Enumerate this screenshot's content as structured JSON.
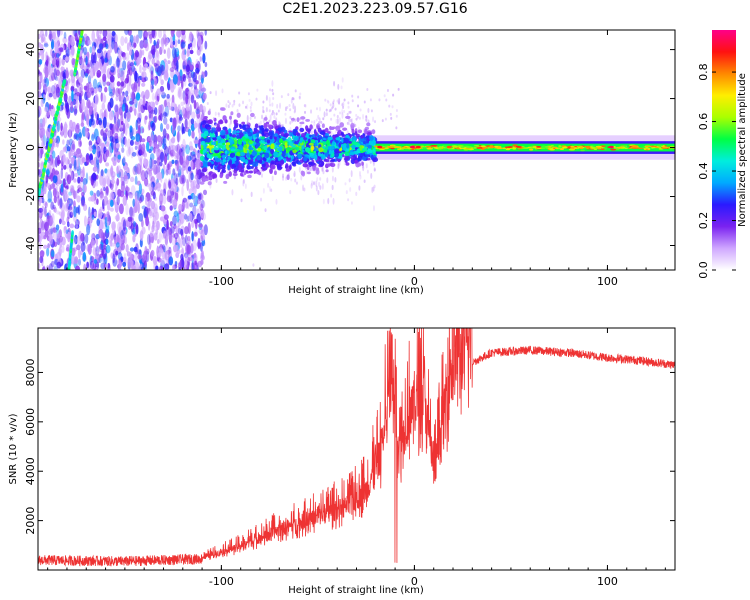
{
  "title": "C2E1.2023.223.09.57.G16",
  "chart_data": [
    {
      "type": "heatmap",
      "name": "spectrogram",
      "xlabel": "Height of straight line (km)",
      "ylabel": "Frequency (Hz)",
      "xlim": [
        -195,
        135
      ],
      "ylim": [
        -50,
        48
      ],
      "x_ticks": [
        -100,
        0,
        100
      ],
      "y_ticks": [
        -40,
        -20,
        0,
        20,
        40
      ],
      "colorbar": {
        "label": "Normalized spectral amplitude",
        "range": [
          0,
          0.97
        ],
        "ticks": [
          0.0,
          0.2,
          0.4,
          0.6,
          0.8
        ],
        "colors": [
          "#ffffff",
          "#cfa6ff",
          "#7a22f0",
          "#2a1aff",
          "#00aaff",
          "#00eedd",
          "#00ff44",
          "#aaff00",
          "#ffee00",
          "#ff8800",
          "#ff1111",
          "#ff0088"
        ]
      },
      "features": [
        {
          "description": "broadband noise",
          "x_range": [
            -195,
            -108
          ],
          "freq_range": [
            -50,
            48
          ]
        },
        {
          "description": "turbulent band",
          "x_range": [
            -110,
            -20
          ],
          "freq_range": [
            -10,
            12
          ]
        },
        {
          "description": "steady carrier line",
          "x_range": [
            -20,
            135
          ],
          "freq": 0,
          "amplitude_peak": 0.95
        }
      ]
    },
    {
      "type": "line",
      "name": "snr",
      "xlabel": "Height of straight line (km)",
      "ylabel": "SNR (10 * v/v)",
      "xlim": [
        -195,
        135
      ],
      "ylim": [
        0,
        9800
      ],
      "x_ticks": [
        -100,
        0,
        100
      ],
      "y_ticks": [
        2000,
        4000,
        6000,
        8000
      ],
      "color": "#ee3333",
      "series": [
        {
          "name": "SNR",
          "x": [
            -195,
            -150,
            -110,
            -90,
            -70,
            -50,
            -35,
            -25,
            -18,
            -12,
            -8,
            -3,
            0,
            5,
            10,
            20,
            30,
            40,
            60,
            80,
            100,
            115,
            135
          ],
          "y": [
            400,
            350,
            450,
            900,
            1500,
            2000,
            2400,
            3000,
            4200,
            7200,
            4500,
            5800,
            6100,
            6600,
            3600,
            7800,
            8400,
            8800,
            8900,
            8800,
            8600,
            8500,
            8300
          ]
        }
      ]
    }
  ]
}
